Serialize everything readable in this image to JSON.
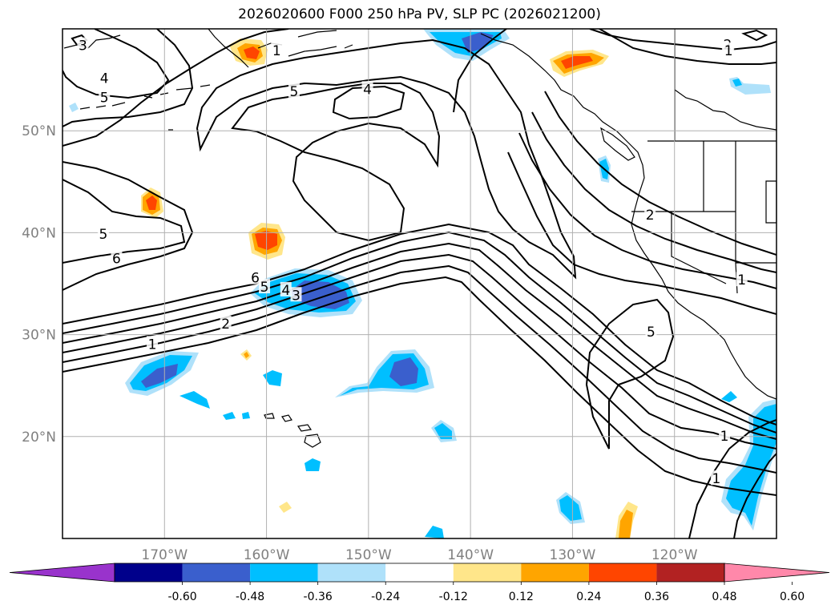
{
  "title": "2026020600 F000 250 hPa PV, SLP PC (2026021200)",
  "chart_data": {
    "type": "heatmap",
    "title": "2026020600 F000 250 hPa PV, SLP PC (2026021200)",
    "field_shaded": "250 hPa PV",
    "field_contoured": "SLP PC",
    "lat_ticks": [
      "50°N",
      "40°N",
      "30°N",
      "20°N"
    ],
    "lon_ticks": [
      "170°W",
      "160°W",
      "150°W",
      "140°W",
      "130°W",
      "120°W"
    ],
    "lat_values": [
      50,
      40,
      30,
      20
    ],
    "lon_values": [
      -170,
      -160,
      -150,
      -140,
      -130,
      -120
    ],
    "lon_range": [
      -180,
      -110
    ],
    "lat_range": [
      10,
      60
    ],
    "grid": true,
    "colorbar": {
      "extend": "both",
      "ticks": [
        "-0.60",
        "-0.48",
        "-0.36",
        "-0.24",
        "-0.12",
        "0.12",
        "0.24",
        "0.36",
        "0.48",
        "0.60"
      ],
      "levels": [
        -0.6,
        -0.48,
        -0.36,
        -0.24,
        -0.12,
        0.12,
        0.24,
        0.36,
        0.48,
        0.6
      ],
      "colors": [
        "#9933cc",
        "#00008b",
        "#3a5fcd",
        "#00bfff",
        "#afe1fa",
        "#ffffff",
        "#ffe68a",
        "#ffa500",
        "#ff4500",
        "#b22222",
        "#ff88aa"
      ]
    },
    "contour_labels": [
      {
        "text": "3",
        "lon": -178,
        "lat": 58.3
      },
      {
        "text": "1",
        "lon": -159,
        "lat": 57.8
      },
      {
        "text": "4",
        "lon": -175.9,
        "lat": 55.1
      },
      {
        "text": "5",
        "lon": -175.9,
        "lat": 53.2
      },
      {
        "text": "5",
        "lon": -157.3,
        "lat": 53.8
      },
      {
        "text": "4",
        "lon": -150.1,
        "lat": 54.0
      },
      {
        "text": "2",
        "lon": -114.8,
        "lat": 58.4
      },
      {
        "text": "1",
        "lon": -114.7,
        "lat": 57.8
      },
      {
        "text": "5",
        "lon": -176,
        "lat": 39.8
      },
      {
        "text": "6",
        "lon": -174.7,
        "lat": 37.4
      },
      {
        "text": "6",
        "lon": -161.1,
        "lat": 35.5
      },
      {
        "text": "5",
        "lon": -160.2,
        "lat": 34.6
      },
      {
        "text": "4",
        "lon": -158.1,
        "lat": 34.3
      },
      {
        "text": "3",
        "lon": -157.1,
        "lat": 33.8
      },
      {
        "text": "2",
        "lon": -164,
        "lat": 31.0
      },
      {
        "text": "1",
        "lon": -171.2,
        "lat": 29.0
      },
      {
        "text": "2",
        "lon": -122.4,
        "lat": 41.7
      },
      {
        "text": "1",
        "lon": -113.4,
        "lat": 35.3
      },
      {
        "text": "5",
        "lon": -122.3,
        "lat": 30.2
      },
      {
        "text": "1",
        "lon": -115.1,
        "lat": 20.0
      },
      {
        "text": "1",
        "lon": -115.9,
        "lat": 15.8
      }
    ]
  }
}
